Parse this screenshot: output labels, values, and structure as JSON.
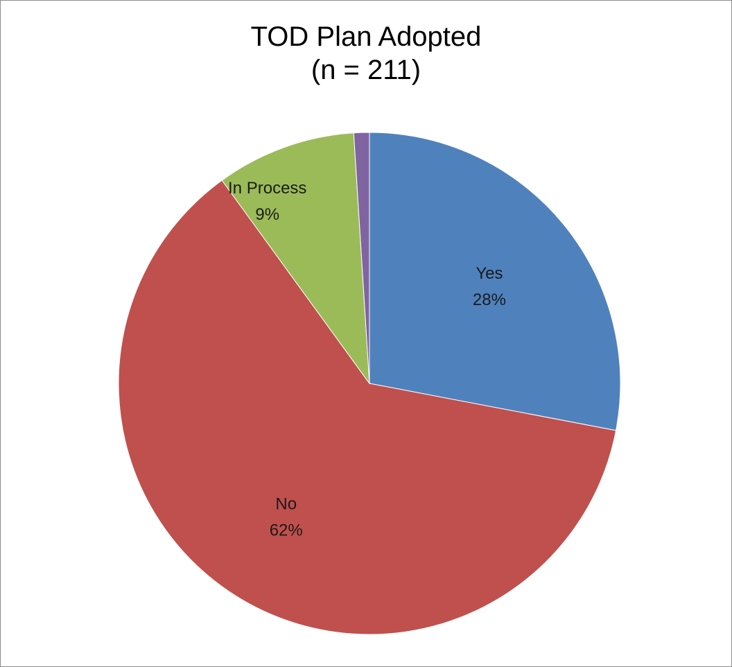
{
  "chart_data": {
    "type": "pie",
    "title": "TOD Plan Adopted",
    "subtitle": "(n = 211)",
    "slices": [
      {
        "label": "Yes",
        "value": 28,
        "display": "28%",
        "color": "#4f81bd"
      },
      {
        "label": "No",
        "value": 62,
        "display": "62%",
        "color": "#c0504d"
      },
      {
        "label": "In Process",
        "value": 9,
        "display": "9%",
        "color": "#9bbb59"
      },
      {
        "label": "",
        "value": 1,
        "display": "",
        "color": "#8064a2"
      }
    ],
    "start_angle_deg": 0,
    "direction": "clockwise",
    "legend": "none",
    "labels_inside": true
  }
}
